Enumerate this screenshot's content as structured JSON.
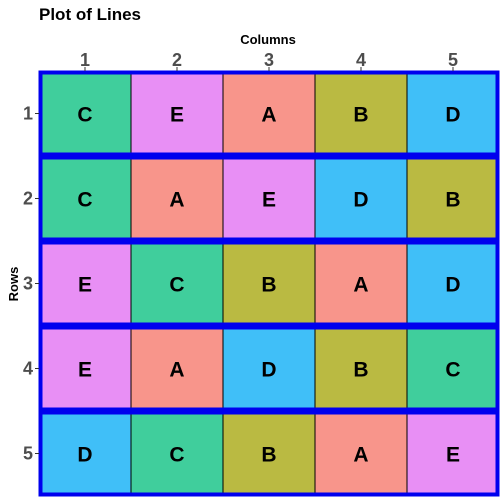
{
  "chart_data": {
    "type": "heatmap",
    "title": "Plot of Lines",
    "xlabel": "Columns",
    "ylabel": "Rows",
    "x_position": "top",
    "columns": [
      "1",
      "2",
      "3",
      "4",
      "5"
    ],
    "rows": [
      "1",
      "2",
      "3",
      "4",
      "5"
    ],
    "cells": [
      [
        "C",
        "E",
        "A",
        "B",
        "D"
      ],
      [
        "C",
        "A",
        "E",
        "D",
        "B"
      ],
      [
        "E",
        "C",
        "B",
        "A",
        "D"
      ],
      [
        "E",
        "A",
        "D",
        "B",
        "C"
      ],
      [
        "D",
        "C",
        "B",
        "A",
        "E"
      ]
    ],
    "fill_colors": {
      "A": "#F8958B",
      "B": "#BABA42",
      "C": "#40CE9C",
      "D": "#40BFF8",
      "E": "#E88FF5"
    },
    "row_border_color": "#0000EE",
    "legend": "none",
    "grid": false
  }
}
